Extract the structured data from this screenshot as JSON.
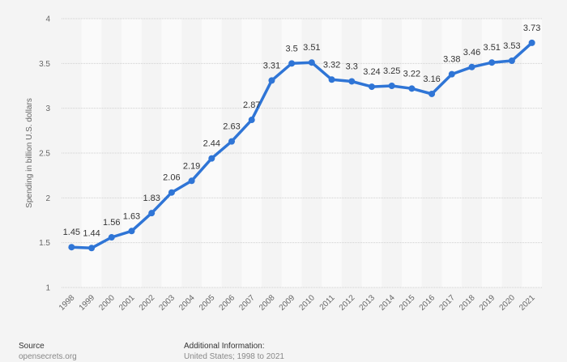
{
  "chart_data": {
    "type": "line",
    "title": "",
    "xlabel": "",
    "ylabel": "Spending in billion U.S. dollars",
    "ylim": [
      1,
      4
    ],
    "yticks": [
      "1",
      "1.5",
      "2",
      "2.5",
      "3",
      "3.5",
      "4"
    ],
    "grid": true,
    "categories": [
      "1998",
      "1999",
      "2000",
      "2001",
      "2002",
      "2003",
      "2004",
      "2005",
      "2006",
      "2007",
      "2008",
      "2009",
      "2010",
      "2011",
      "2012",
      "2013",
      "2014",
      "2015",
      "2016",
      "2017",
      "2018",
      "2019",
      "2020",
      "2021"
    ],
    "series": [
      {
        "name": "Spending",
        "color": "#2f75d6",
        "values": [
          1.45,
          1.44,
          1.56,
          1.63,
          1.83,
          2.06,
          2.19,
          2.44,
          2.63,
          2.87,
          3.31,
          3.5,
          3.51,
          3.32,
          3.3,
          3.24,
          3.25,
          3.22,
          3.16,
          3.38,
          3.46,
          3.51,
          3.53,
          3.73
        ],
        "labels": [
          "1.45",
          "1.44",
          "1.56",
          "1.63",
          "1.83",
          "2.06",
          "2.19",
          "2.44",
          "2.63",
          "2.87",
          "3.31",
          "3.5",
          "3.51",
          "3.32",
          "3.3",
          "3.24",
          "3.25",
          "3.22",
          "3.16",
          "3.38",
          "3.46",
          "3.51",
          "3.53",
          "3.73"
        ]
      }
    ]
  },
  "footer": {
    "source_heading": "Source",
    "source_value": "opensecrets.org",
    "info_heading": "Additional Information:",
    "info_value": "United States; 1998 to 2021"
  }
}
